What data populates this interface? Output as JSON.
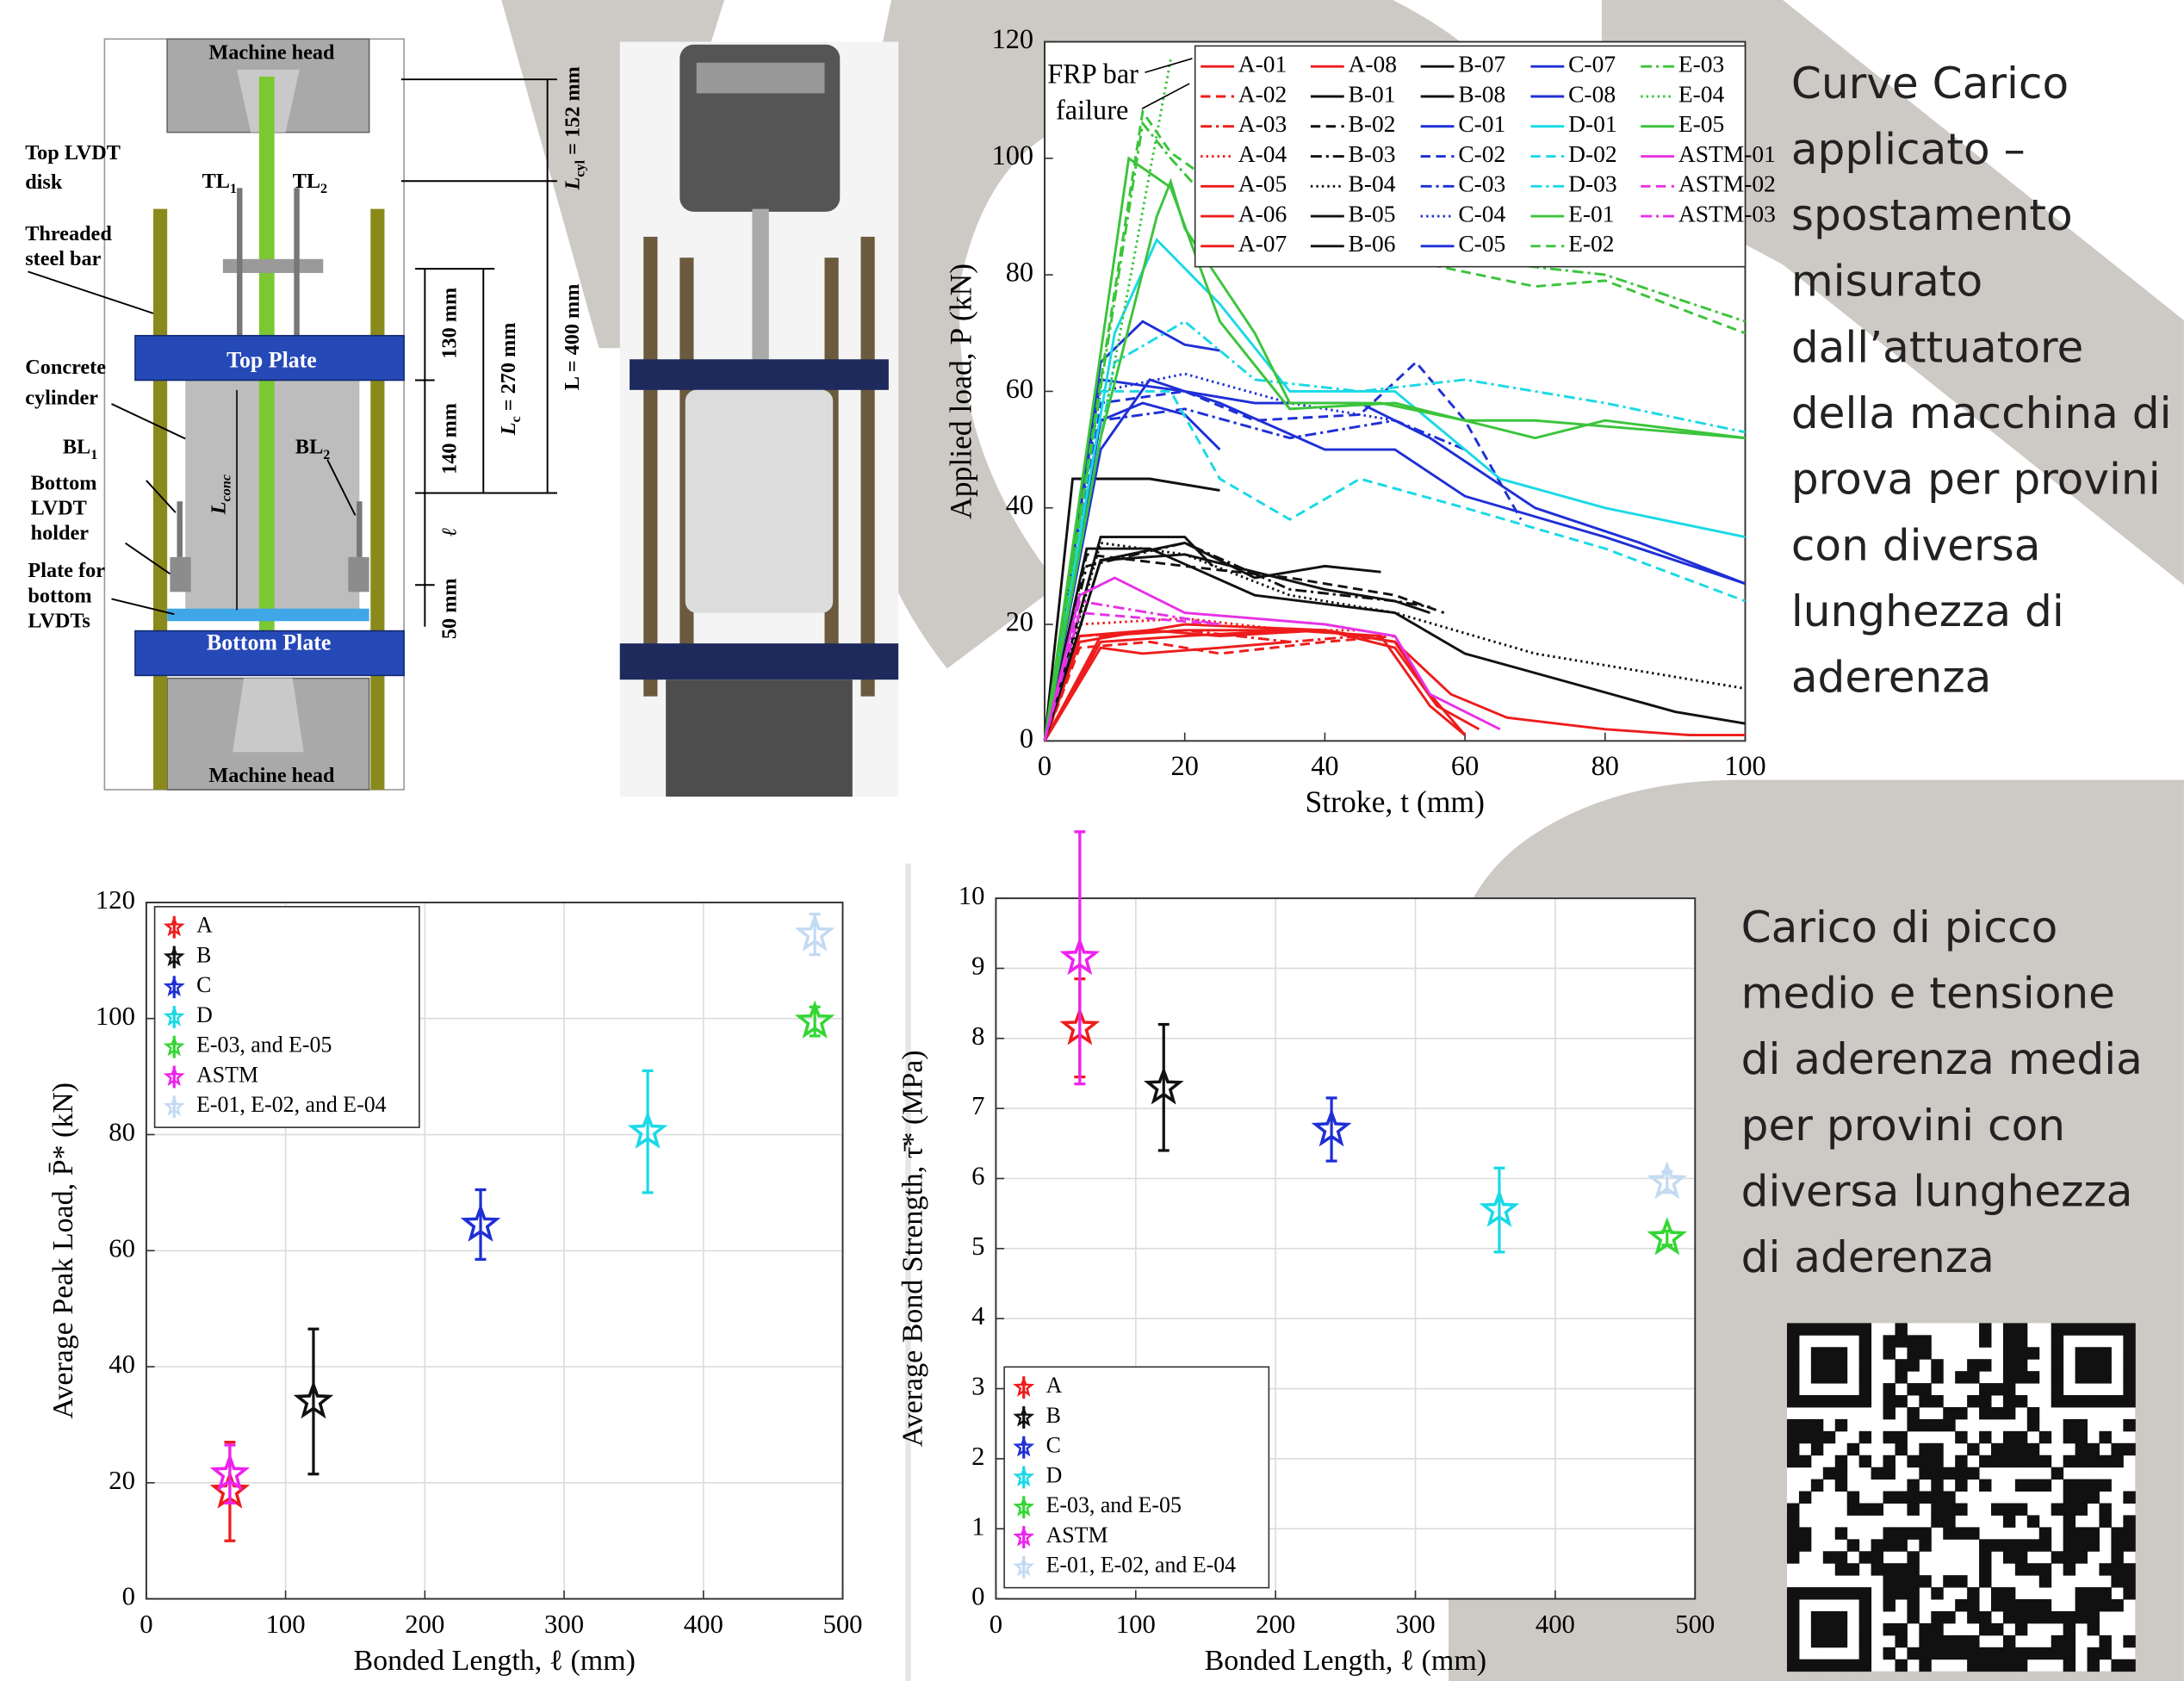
{
  "captions": [
    [
      "Curve Carico",
      "applicato –",
      "spostamento",
      "misurato",
      "dall’attuatore",
      "della macchina di",
      "prova per provini",
      "con diversa",
      "lunghezza di",
      "aderenza"
    ],
    [
      "Carico di picco",
      "medio e tensione",
      "di aderenza media",
      "per provini con",
      "diversa lunghezza",
      "di aderenza"
    ]
  ],
  "diagram": {
    "machine_head_top": "Machine head",
    "machine_head_bottom": "Machine head",
    "top_lvdt_disk": [
      "Top LVDT",
      "disk"
    ],
    "tl1": {
      "text": "TL",
      "sub": "1"
    },
    "tl2": {
      "text": "TL",
      "sub": "2"
    },
    "threaded_bar": [
      "Threaded",
      "steel bar"
    ],
    "top_plate": "Top Plate",
    "concrete_cylinder": [
      "Concrete",
      "cylinder"
    ],
    "bl1": {
      "text": "BL",
      "sub": "1"
    },
    "bl2": {
      "text": "BL",
      "sub": "2"
    },
    "bottom_holder": [
      "Bottom",
      "LVDT",
      "holder"
    ],
    "plate_bottom_lvdts": [
      "Plate for",
      "bottom",
      "LVDTs"
    ],
    "bottom_plate": "Bottom Plate",
    "l_conc": {
      "text": "L",
      "sub": "conc"
    },
    "dim_130": "130 mm",
    "dim_140": "140 mm",
    "dim_l": "ℓ",
    "dim_50": "50 mm",
    "dim_lc": {
      "text": "L",
      "sub": "c",
      "rest": " = 270 mm"
    },
    "dim_L": "L = 400 mm",
    "dim_lcyl": {
      "text": "L",
      "sub": "cyl",
      "rest": " = 152 mm"
    }
  },
  "chart_data": [
    {
      "type": "line",
      "xlabel": "Stroke, t (mm)",
      "ylabel": "Applied load, P (kN)",
      "xlim": [
        0,
        100
      ],
      "xticks": [
        0,
        20,
        40,
        60,
        80,
        100
      ],
      "ylim": [
        0,
        120
      ],
      "yticks": [
        0,
        20,
        40,
        60,
        80,
        100,
        120
      ],
      "grid": false,
      "legend": "upper right",
      "legend_columns": 5,
      "annotation": [
        "FRP bar",
        "failure"
      ],
      "series": [
        {
          "name": "A-01",
          "color": "#ee1c1c",
          "dash": "solid",
          "x": [
            0,
            5,
            15,
            25,
            40,
            50,
            55,
            60
          ],
          "values": [
            0,
            18,
            19,
            18,
            19,
            17,
            8,
            1
          ]
        },
        {
          "name": "A-02",
          "color": "#ee1c1c",
          "dash": "dash",
          "x": [
            0,
            5,
            15,
            25,
            40,
            50
          ],
          "values": [
            0,
            16,
            17,
            15,
            17,
            18
          ]
        },
        {
          "name": "A-03",
          "color": "#ee1c1c",
          "dash": "dashdot",
          "x": [
            0,
            5,
            20,
            35,
            45
          ],
          "values": [
            0,
            18,
            19,
            17,
            18
          ]
        },
        {
          "name": "A-04",
          "color": "#ee1c1c",
          "dash": "dot",
          "x": [
            0,
            5,
            20,
            35,
            45
          ],
          "values": [
            0,
            20,
            21,
            19,
            19
          ]
        },
        {
          "name": "A-05",
          "color": "#ee1c1c",
          "dash": "solid",
          "x": [
            0,
            8,
            20,
            40,
            50,
            58,
            66,
            80,
            92,
            100
          ],
          "values": [
            0,
            18,
            19,
            19,
            17,
            8,
            4,
            2,
            1,
            1
          ]
        },
        {
          "name": "A-06",
          "color": "#ee1c1c",
          "dash": "solid",
          "x": [
            0,
            5,
            20,
            40,
            50,
            56,
            62
          ],
          "values": [
            0,
            17,
            20,
            19,
            16,
            6,
            2
          ]
        },
        {
          "name": "A-07",
          "color": "#ee1c1c",
          "dash": "solid",
          "x": [
            0,
            8,
            20,
            35,
            48,
            55,
            60
          ],
          "values": [
            0,
            17,
            18,
            19,
            18,
            6,
            1
          ]
        },
        {
          "name": "A-08",
          "color": "#ee1c1c",
          "dash": "solid",
          "x": [
            0,
            8,
            14,
            25,
            35
          ],
          "values": [
            0,
            16,
            15,
            16,
            17
          ]
        },
        {
          "name": "B-01",
          "color": "#111111",
          "dash": "solid",
          "x": [
            0,
            6,
            15,
            30,
            50,
            60,
            75,
            90,
            100
          ],
          "values": [
            0,
            33,
            33,
            25,
            22,
            15,
            10,
            5,
            3
          ]
        },
        {
          "name": "B-02",
          "color": "#111111",
          "dash": "dash",
          "x": [
            0,
            6,
            20,
            35,
            50,
            57
          ],
          "values": [
            0,
            32,
            30,
            28,
            25,
            22
          ]
        },
        {
          "name": "B-03",
          "color": "#111111",
          "dash": "dashdot",
          "x": [
            0,
            6,
            20,
            35,
            50,
            55
          ],
          "values": [
            0,
            30,
            34,
            26,
            24,
            23
          ]
        },
        {
          "name": "B-04",
          "color": "#111111",
          "dash": "dot",
          "x": [
            0,
            8,
            20,
            35,
            50,
            70,
            100
          ],
          "values": [
            0,
            34,
            32,
            25,
            22,
            15,
            9
          ]
        },
        {
          "name": "B-05",
          "color": "#111111",
          "dash": "solid",
          "x": [
            0,
            8,
            20,
            24
          ],
          "values": [
            0,
            35,
            35,
            30
          ]
        },
        {
          "name": "B-06",
          "color": "#111111",
          "dash": "solid",
          "x": [
            0,
            4,
            15,
            25
          ],
          "values": [
            0,
            45,
            45,
            43
          ]
        },
        {
          "name": "B-07",
          "color": "#111111",
          "dash": "solid",
          "x": [
            0,
            8,
            20,
            40,
            50,
            55
          ],
          "values": [
            0,
            31,
            32,
            26,
            24,
            22
          ]
        },
        {
          "name": "B-08",
          "color": "#111111",
          "dash": "solid",
          "x": [
            0,
            8,
            20,
            30,
            40,
            48
          ],
          "values": [
            0,
            31,
            34,
            28,
            30,
            29
          ]
        },
        {
          "name": "C-01",
          "color": "#1f2fd6",
          "dash": "solid",
          "x": [
            0,
            8,
            20,
            30,
            45,
            55,
            70,
            85,
            100
          ],
          "values": [
            0,
            62,
            60,
            58,
            58,
            52,
            40,
            34,
            27
          ]
        },
        {
          "name": "C-02",
          "color": "#1f2fd6",
          "dash": "dash",
          "x": [
            0,
            8,
            20,
            30,
            45,
            53,
            60,
            68
          ],
          "values": [
            0,
            58,
            60,
            55,
            56,
            65,
            55,
            38
          ]
        },
        {
          "name": "C-03",
          "color": "#1f2fd6",
          "dash": "dashdot",
          "x": [
            0,
            8,
            20,
            35,
            50,
            60
          ],
          "values": [
            0,
            55,
            57,
            52,
            55,
            50
          ]
        },
        {
          "name": "C-04",
          "color": "#1f2fd6",
          "dash": "dot",
          "x": [
            0,
            8,
            20,
            35,
            50
          ],
          "values": [
            0,
            60,
            63,
            58,
            55
          ]
        },
        {
          "name": "C-05",
          "color": "#1f2fd6",
          "dash": "solid",
          "x": [
            0,
            8,
            14,
            20,
            25
          ],
          "values": [
            0,
            55,
            58,
            56,
            50
          ]
        },
        {
          "name": "C-07",
          "color": "#1f2fd6",
          "dash": "solid",
          "x": [
            0,
            8,
            14,
            20,
            25
          ],
          "values": [
            0,
            65,
            72,
            68,
            67
          ]
        },
        {
          "name": "C-08",
          "color": "#1f2fd6",
          "dash": "solid",
          "x": [
            0,
            8,
            15,
            25,
            40,
            50,
            60,
            80,
            100
          ],
          "values": [
            0,
            50,
            62,
            58,
            50,
            50,
            42,
            35,
            27
          ]
        },
        {
          "name": "D-01",
          "color": "#1ad9e6",
          "dash": "solid",
          "x": [
            0,
            10,
            16,
            25,
            35,
            50,
            65,
            80,
            100
          ],
          "values": [
            0,
            70,
            86,
            75,
            60,
            60,
            45,
            40,
            35
          ]
        },
        {
          "name": "D-02",
          "color": "#1ad9e6",
          "dash": "dash",
          "x": [
            0,
            8,
            18,
            25,
            35,
            45,
            60,
            80,
            100
          ],
          "values": [
            0,
            60,
            60,
            45,
            38,
            45,
            40,
            33,
            24
          ]
        },
        {
          "name": "D-03",
          "color": "#1ad9e6",
          "dash": "dashdot",
          "x": [
            0,
            10,
            20,
            30,
            45,
            60,
            80,
            100
          ],
          "values": [
            0,
            65,
            72,
            62,
            60,
            62,
            58,
            53
          ]
        },
        {
          "name": "E-01",
          "color": "#3bc43b",
          "dash": "solid",
          "x": [
            0,
            12,
            18,
            25,
            35,
            50,
            70,
            80,
            100
          ],
          "values": [
            0,
            100,
            95,
            72,
            57,
            58,
            52,
            55,
            52
          ]
        },
        {
          "name": "E-02",
          "color": "#3bc43b",
          "dash": "dash",
          "x": [
            0,
            14,
            18,
            25,
            35,
            50,
            70,
            80,
            100
          ],
          "values": [
            0,
            108,
            101,
            95,
            85,
            83,
            78,
            79,
            70
          ]
        },
        {
          "name": "E-03",
          "color": "#3bc43b",
          "dash": "dashdot",
          "x": [
            0,
            14,
            18,
            30,
            50,
            80,
            100
          ],
          "values": [
            0,
            106,
            100,
            84,
            84,
            80,
            72
          ]
        },
        {
          "name": "E-04",
          "color": "#3bc43b",
          "dash": "dot",
          "x": [
            0,
            18
          ],
          "values": [
            0,
            117
          ]
        },
        {
          "name": "E-05",
          "color": "#3bc43b",
          "dash": "solid",
          "x": [
            0,
            8,
            16,
            18,
            20,
            30,
            35,
            48,
            60,
            70,
            80,
            100
          ],
          "values": [
            0,
            52,
            90,
            96,
            88,
            70,
            58,
            58,
            55,
            55,
            54,
            52
          ]
        },
        {
          "name": "ASTM-01",
          "color": "#e632e6",
          "dash": "solid",
          "x": [
            0,
            5,
            10,
            20,
            30,
            40,
            50,
            55,
            65
          ],
          "values": [
            0,
            25,
            28,
            22,
            21,
            20,
            18,
            8,
            2
          ]
        },
        {
          "name": "ASTM-02",
          "color": "#e632e6",
          "dash": "dash",
          "x": [
            0,
            5,
            15,
            25
          ],
          "values": [
            0,
            22,
            21,
            20
          ]
        },
        {
          "name": "ASTM-03",
          "color": "#e632e6",
          "dash": "dashdot",
          "x": [
            0,
            5,
            15,
            25
          ],
          "values": [
            0,
            24,
            22,
            20
          ]
        }
      ]
    },
    {
      "type": "errorbar",
      "xlabel": "Bonded Length, ℓ (mm)",
      "ylabel": "Average Peak Load, P̄* (kN)",
      "xlim": [
        0,
        500
      ],
      "xticks": [
        0,
        100,
        200,
        300,
        400,
        500
      ],
      "ylim": [
        0,
        120
      ],
      "yticks": [
        0,
        20,
        40,
        60,
        80,
        100,
        120
      ],
      "grid": true,
      "legend": "upper left",
      "legend_columns": 1,
      "series": [
        {
          "name": "A",
          "color": "#ee1c1c",
          "x": [
            60
          ],
          "values": [
            18.5
          ],
          "errors": [
            8.5
          ]
        },
        {
          "name": "B",
          "color": "#111111",
          "x": [
            120
          ],
          "values": [
            34
          ],
          "errors": [
            12.5
          ]
        },
        {
          "name": "C",
          "color": "#1f2fd6",
          "x": [
            240
          ],
          "values": [
            64.5
          ],
          "errors": [
            6
          ]
        },
        {
          "name": "D",
          "color": "#1ad9e6",
          "x": [
            360
          ],
          "values": [
            80.5
          ],
          "errors": [
            10.5
          ]
        },
        {
          "name": "E-03, and E-05",
          "color": "#33d633",
          "x": [
            480
          ],
          "values": [
            99.5
          ],
          "errors": [
            2.5
          ]
        },
        {
          "name": "ASTM",
          "color": "#ee22ee",
          "x": [
            60
          ],
          "values": [
            21.5
          ],
          "errors": [
            5
          ]
        },
        {
          "name": "E-01, E-02, and E-04",
          "color": "#c3daf3",
          "x": [
            480
          ],
          "values": [
            114.5
          ],
          "errors": [
            3.5
          ]
        }
      ]
    },
    {
      "type": "errorbar",
      "xlabel": "Bonded Length, ℓ (mm)",
      "ylabel": "Average Bond Strength, τ̄* (MPa)",
      "xlim": [
        0,
        500
      ],
      "xticks": [
        0,
        100,
        200,
        300,
        400,
        500
      ],
      "ylim": [
        0,
        10
      ],
      "yticks": [
        0,
        1,
        2,
        3,
        4,
        5,
        6,
        7,
        8,
        9,
        10
      ],
      "grid": true,
      "legend": "lower left",
      "legend_columns": 1,
      "series": [
        {
          "name": "A",
          "color": "#ee1c1c",
          "x": [
            60
          ],
          "values": [
            8.15
          ],
          "errors": [
            0.7
          ]
        },
        {
          "name": "B",
          "color": "#111111",
          "x": [
            120
          ],
          "values": [
            7.3
          ],
          "errors": [
            0.9
          ]
        },
        {
          "name": "C",
          "color": "#1f2fd6",
          "x": [
            240
          ],
          "values": [
            6.7
          ],
          "errors": [
            0.45
          ]
        },
        {
          "name": "D",
          "color": "#1ad9e6",
          "x": [
            360
          ],
          "values": [
            5.55
          ],
          "errors": [
            0.6
          ]
        },
        {
          "name": "E-03, and E-05",
          "color": "#33d633",
          "x": [
            480
          ],
          "values": [
            5.15
          ],
          "errors": [
            0.1
          ]
        },
        {
          "name": "ASTM",
          "color": "#ee22ee",
          "x": [
            60
          ],
          "values": [
            9.15
          ],
          "errors": [
            1.8
          ]
        },
        {
          "name": "E-01, E-02, and E-04",
          "color": "#c3daf3",
          "x": [
            480
          ],
          "values": [
            5.95
          ],
          "errors": [
            0.15
          ]
        }
      ]
    }
  ]
}
